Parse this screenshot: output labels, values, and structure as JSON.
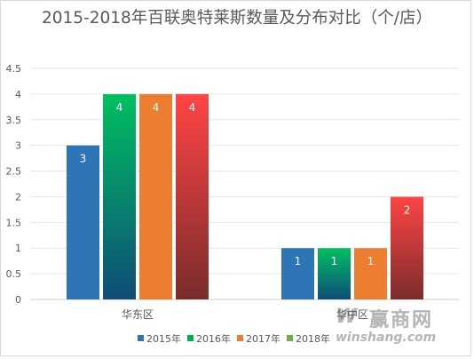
{
  "chart_data": {
    "type": "bar",
    "title": "2015-2018年百联奥特莱斯数量及分布对比（个/店）",
    "categories": [
      "华东区",
      "华中区"
    ],
    "series": [
      {
        "name": "2015年",
        "values": [
          3,
          1
        ]
      },
      {
        "name": "2016年",
        "values": [
          4,
          1
        ]
      },
      {
        "name": "2017年",
        "values": [
          4,
          1
        ]
      },
      {
        "name": "2018年",
        "values": [
          4,
          2
        ]
      }
    ],
    "y_ticks": [
      "0",
      "0.5",
      "1",
      "1.5",
      "2",
      "2.5",
      "3",
      "3.5",
      "4",
      "4.5"
    ],
    "ylim": [
      0,
      4.5
    ],
    "grid": true,
    "legend": "bottom",
    "colors": {
      "s2015": "#2e75b6",
      "s2016": "#00b050",
      "s2016_dark": "#1a5276",
      "s2017": "#ed7d31",
      "s2018": "#ff4040",
      "s2018_dark": "#7b2c2c",
      "s2018_legend": "#70ad47",
      "grid": "#e6e6e6",
      "text": "#595959"
    }
  },
  "watermark": {
    "cn": "赢商网",
    "en": "winshang.com",
    "mark": "W"
  }
}
